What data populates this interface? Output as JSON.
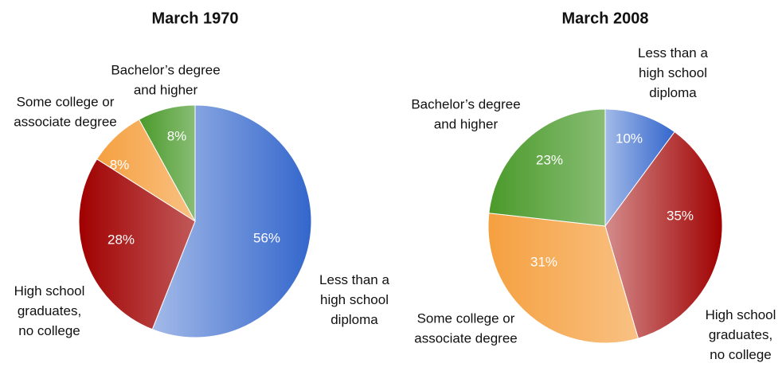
{
  "chart_data": [
    {
      "type": "pie",
      "title": "March 1970",
      "categories": [
        "Less than a high school diploma",
        "High school graduates, no college",
        "Some college or associate degree",
        "Bachelor’s degree and higher"
      ],
      "values": [
        56,
        28,
        8,
        8
      ],
      "value_labels": [
        "56%",
        "28%",
        "8%",
        "8%"
      ],
      "colors": [
        "#3366cc",
        "#a00000",
        "#f5a040",
        "#4a9a2a"
      ]
    },
    {
      "type": "pie",
      "title": "March 2008",
      "categories": [
        "Less than a high school diploma",
        "High school graduates, no college",
        "Some college or associate degree",
        "Bachelor’s degree and higher"
      ],
      "values": [
        10,
        35,
        31,
        23
      ],
      "value_labels": [
        "10%",
        "35%",
        "31%",
        "23%"
      ],
      "colors": [
        "#3366cc",
        "#a00000",
        "#f5a040",
        "#4a9a2a"
      ]
    }
  ]
}
